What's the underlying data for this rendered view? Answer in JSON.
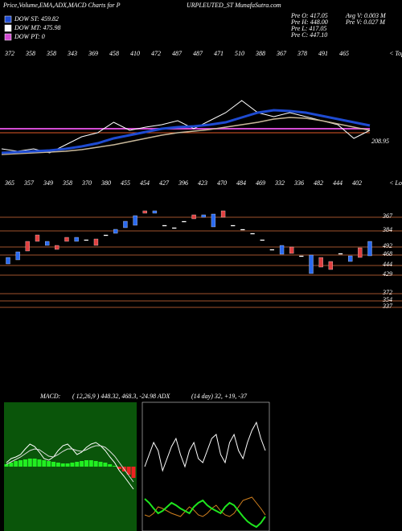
{
  "header": {
    "left": "Price,Volume,EMA,ADX,MACD Charts for P",
    "right": "URPLEUTED_ST MunafaSutra.com"
  },
  "legend": [
    {
      "label": "DOW ST: 459.82",
      "color": "#1e4bd2"
    },
    {
      "label": "DOW MT: 475.98",
      "color": "#ffffff"
    },
    {
      "label": "DOW PT: 0",
      "color": "#d24bd2"
    }
  ],
  "info": [
    "Pre O: 417.05",
    "Pre H: 448.00",
    "Pre L: 417.05",
    "Pre C: 447.10"
  ],
  "info2": [
    "Avg V: 0.003 M",
    "Pre V: 0.027 M"
  ],
  "tops": {
    "labels": [
      "372",
      "358",
      "358",
      "343",
      "369",
      "458",
      "410",
      "472",
      "487",
      "487",
      "471",
      "510",
      "388",
      "367",
      "378",
      "491",
      "465"
    ],
    "caption": "< Tops"
  },
  "lows": {
    "labels": [
      "365",
      "357",
      "349",
      "358",
      "370",
      "380",
      "455",
      "454",
      "427",
      "396",
      "423",
      "470",
      "484",
      "469",
      "332",
      "336",
      "482",
      "444",
      "402"
    ],
    "caption": "< Lows"
  },
  "last_price": "208.95",
  "price_chart": {
    "type": "line",
    "ylim": [
      0,
      140
    ],
    "pt_level": 50,
    "mt_level": 45,
    "series": [
      {
        "name": "price",
        "color": "#ffffff",
        "width": 1,
        "values": [
          25,
          22,
          25,
          20,
          30,
          40,
          45,
          58,
          48,
          52,
          55,
          60,
          50,
          60,
          70,
          85,
          70,
          65,
          70,
          65,
          60,
          55,
          38,
          48
        ]
      },
      {
        "name": "mt",
        "color": "#c8b89a",
        "width": 1.5,
        "values": [
          18,
          19,
          20,
          21,
          22,
          24,
          27,
          30,
          34,
          38,
          42,
          45,
          47,
          49,
          52,
          55,
          58,
          62,
          64,
          63,
          60,
          56,
          52,
          48
        ]
      },
      {
        "name": "ema",
        "color": "#1e4bd2",
        "width": 3,
        "values": [
          20,
          21,
          22,
          23,
          25,
          28,
          32,
          38,
          42,
          46,
          50,
          52,
          53,
          55,
          58,
          64,
          70,
          73,
          72,
          70,
          66,
          62,
          58,
          54
        ]
      }
    ]
  },
  "candle_chart": {
    "type": "candlestick",
    "ylim": [
      0,
      135
    ],
    "levels": [
      {
        "value": 120,
        "label": "367"
      },
      {
        "value": 103,
        "label": "384"
      },
      {
        "value": 83,
        "label": "492"
      },
      {
        "value": 73,
        "label": "468"
      },
      {
        "value": 60,
        "label": "444"
      },
      {
        "value": 48,
        "label": "429"
      },
      {
        "value": 25,
        "label": "372"
      },
      {
        "value": 16,
        "label": "354"
      },
      {
        "value": 8,
        "label": "337"
      }
    ],
    "open": [
      62,
      67,
      90,
      98,
      85,
      85,
      95,
      90,
      92,
      93,
      98,
      100,
      107,
      110,
      128,
      125,
      110,
      107,
      115,
      123,
      120,
      108,
      128,
      110,
      105,
      100,
      92,
      80,
      74,
      83,
      72,
      50,
      70,
      65,
      75,
      65,
      82,
      72
    ],
    "close": [
      70,
      77,
      78,
      90,
      90,
      80,
      90,
      95,
      92,
      85,
      98,
      105,
      115,
      122,
      125,
      128,
      110,
      107,
      115,
      118,
      123,
      124,
      120,
      110,
      105,
      100,
      92,
      80,
      85,
      75,
      72,
      73,
      58,
      55,
      75,
      72,
      70,
      90
    ]
  },
  "macd": {
    "type": "macd",
    "title": "MACD:",
    "text": "( 12,26,9 ) 448.32, 468.3, -24.98 ADX",
    "ylim": [
      -80,
      80
    ],
    "hist": [
      3,
      5,
      7,
      8,
      9,
      10,
      10,
      9,
      8,
      7,
      6,
      5,
      4,
      4,
      5,
      6,
      7,
      8,
      8,
      7,
      6,
      5,
      3,
      1,
      -3,
      -6,
      -10,
      -14
    ],
    "series": [
      {
        "color": "#ffffff",
        "values": [
          5,
          10,
          12,
          15,
          22,
          28,
          25,
          18,
          10,
          8,
          12,
          20,
          26,
          28,
          22,
          15,
          18,
          24,
          28,
          30,
          26,
          20,
          12,
          5,
          -5,
          -12,
          -20,
          -28
        ]
      },
      {
        "color": "#dddddd",
        "values": [
          3,
          6,
          9,
          12,
          16,
          20,
          22,
          21,
          17,
          13,
          12,
          15,
          19,
          22,
          22,
          20,
          19,
          21,
          24,
          26,
          26,
          24,
          19,
          13,
          5,
          -3,
          -11,
          -19
        ]
      }
    ]
  },
  "adx": {
    "type": "line",
    "text": "(14 day) 32, +19, -37",
    "ylim": [
      0,
      160
    ],
    "series": [
      {
        "color": "#ffffff",
        "values": [
          80,
          95,
          110,
          100,
          75,
          90,
          105,
          115,
          95,
          80,
          100,
          110,
          90,
          85,
          100,
          115,
          120,
          95,
          85,
          110,
          120,
          100,
          90,
          110,
          125,
          135,
          115,
          100
        ]
      },
      {
        "color": "#d2801e",
        "values": [
          20,
          18,
          22,
          30,
          28,
          25,
          22,
          20,
          18,
          24,
          30,
          26,
          20,
          18,
          22,
          28,
          32,
          25,
          20,
          18,
          22,
          30,
          38,
          40,
          42,
          35,
          28,
          20
        ]
      },
      {
        "color": "#1ee61e",
        "values": [
          40,
          35,
          28,
          22,
          25,
          30,
          35,
          32,
          28,
          25,
          22,
          30,
          35,
          38,
          32,
          28,
          25,
          22,
          30,
          35,
          32,
          25,
          18,
          12,
          8,
          5,
          10,
          18
        ]
      }
    ]
  }
}
